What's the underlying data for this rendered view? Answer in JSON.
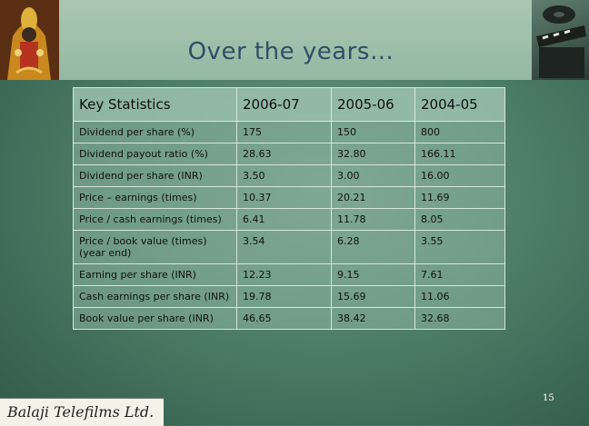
{
  "title": "Over the years…",
  "page_number": "15",
  "logo_text": "Balaji Telefilms Ltd.",
  "table": {
    "headers": [
      "Key Statistics",
      "2006-07",
      "2005-06",
      "2004-05"
    ],
    "rows": [
      [
        "Dividend per share (%)",
        "175",
        "150",
        "800"
      ],
      [
        "Dividend payout ratio (%)",
        "28.63",
        "32.80",
        "166.11"
      ],
      [
        "Dividend per share (INR)",
        "3.50",
        "3.00",
        "16.00"
      ],
      [
        "Price – earnings (times)",
        "10.37",
        "20.21",
        "11.69"
      ],
      [
        "Price / cash earnings (times)",
        "6.41",
        "11.78",
        "8.05"
      ],
      [
        "Price / book value (times) (year end)",
        "3.54",
        "6.28",
        "3.55"
      ],
      [
        "Earning per share (INR)",
        "12.23",
        "9.15",
        "7.61"
      ],
      [
        "Cash earnings per share (INR)",
        "19.78",
        "15.69",
        "11.06"
      ],
      [
        "Book value per share (INR)",
        "46.65",
        "38.42",
        "32.68"
      ]
    ]
  },
  "colors": {
    "title": "#2f4f66",
    "table_bg": "#8cb4a0"
  }
}
